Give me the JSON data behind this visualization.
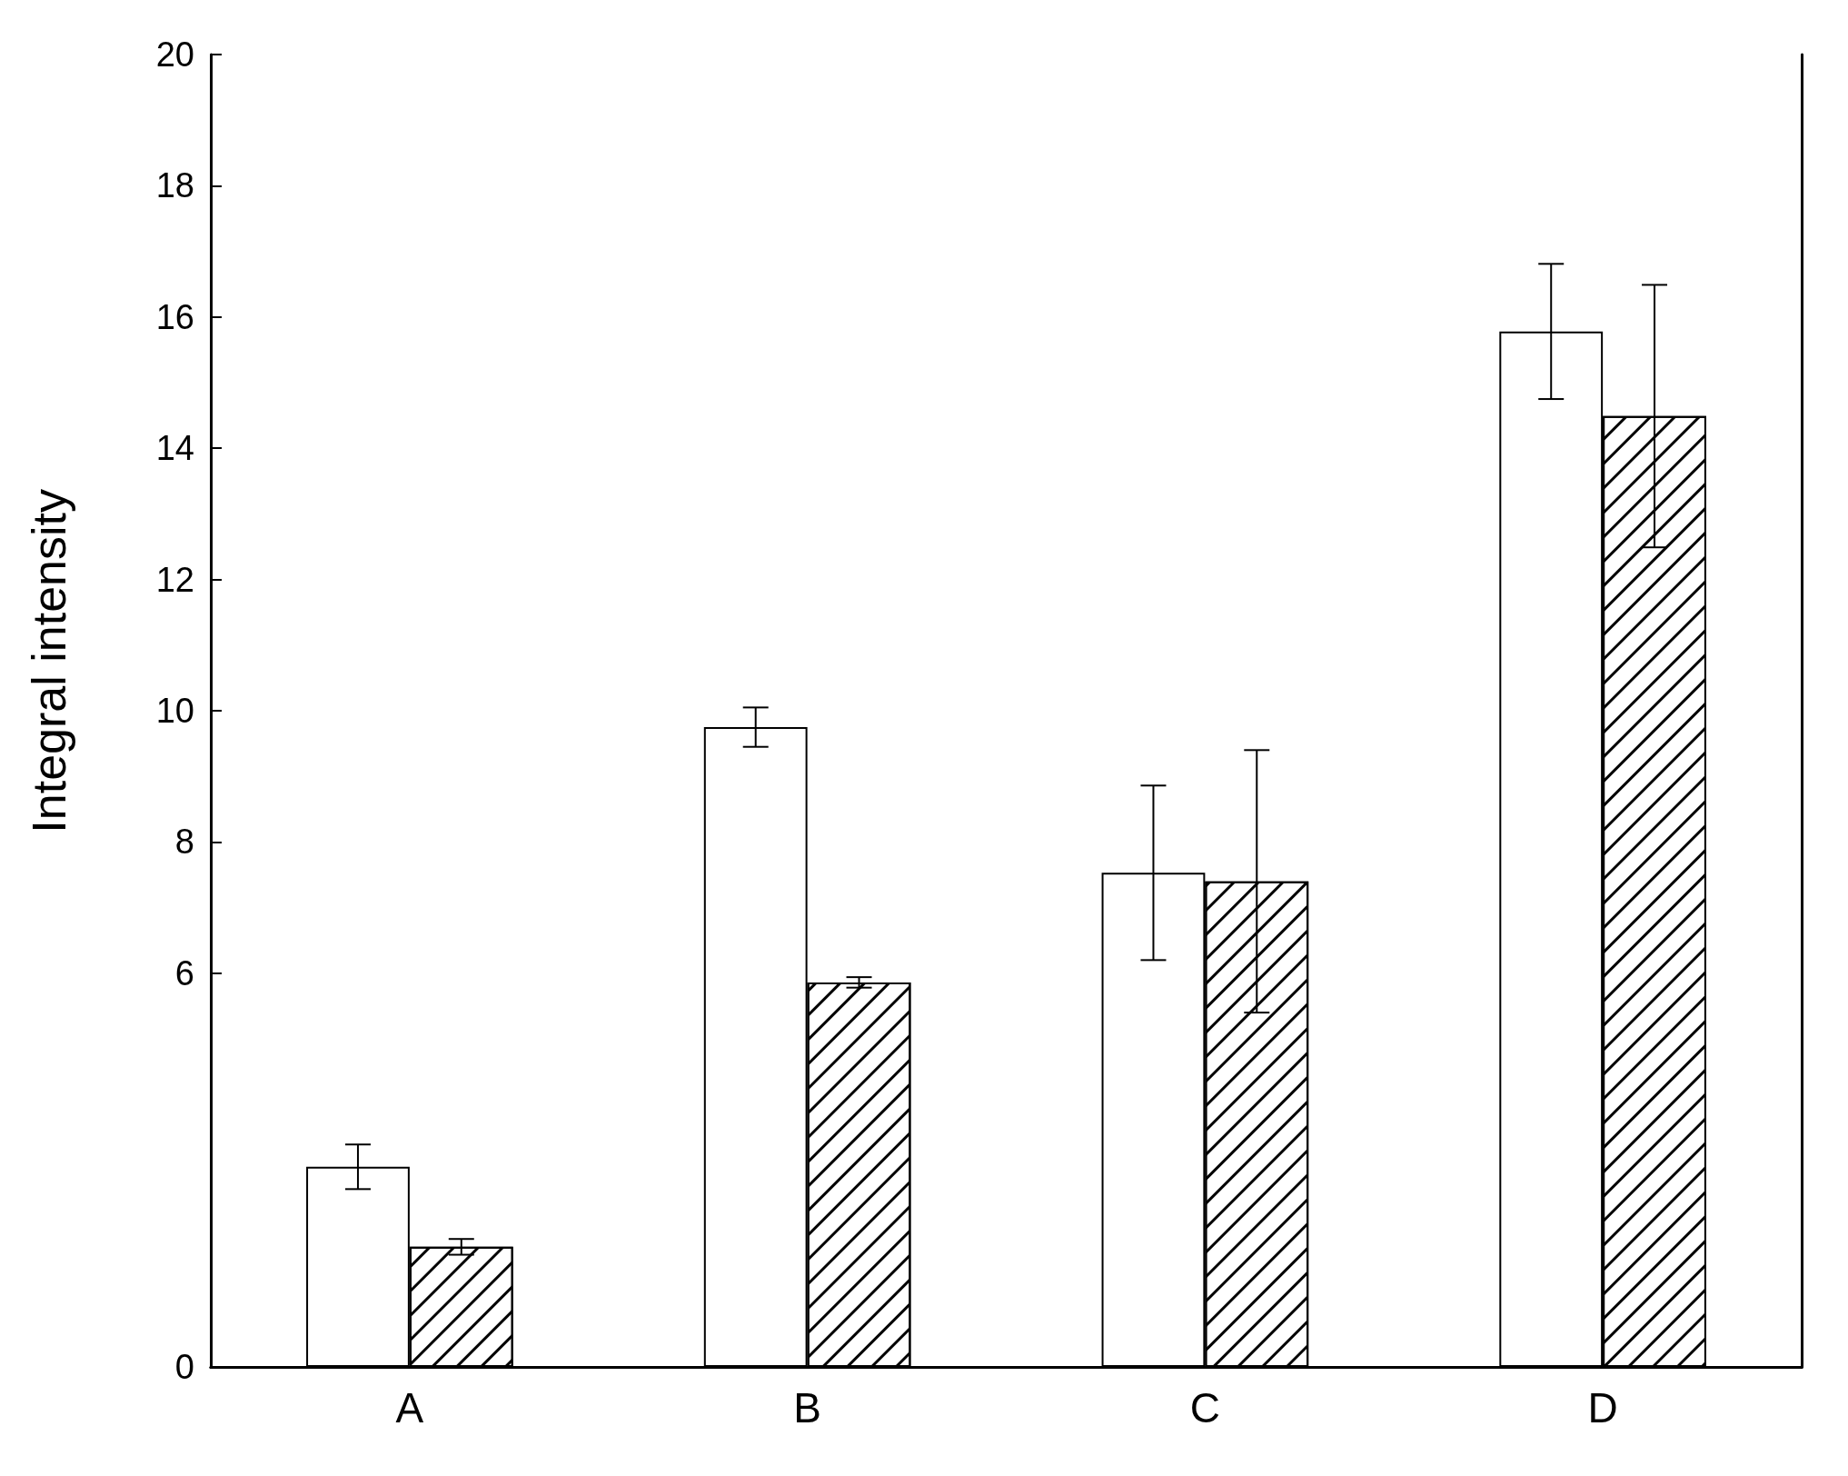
{
  "chart_data": {
    "type": "bar",
    "ylabel": "Integral intensity",
    "categories": [
      "A",
      "B",
      "C",
      "D"
    ],
    "series": [
      {
        "color": "#ffffff",
        "values": [
          3.05,
          9.75,
          7.53,
          15.78
        ],
        "errors": [
          0.34,
          0.3,
          1.33,
          1.03
        ]
      },
      {
        "color": "#ffffff",
        "values": [
          1.83,
          5.86,
          7.4,
          14.49
        ],
        "errors": [
          0.12,
          0.08,
          2.0,
          2.0
        ]
      }
    ],
    "ylim": [
      0,
      20
    ],
    "yticks": [
      0,
      6,
      8,
      10,
      12,
      14,
      16,
      18,
      20
    ]
  }
}
